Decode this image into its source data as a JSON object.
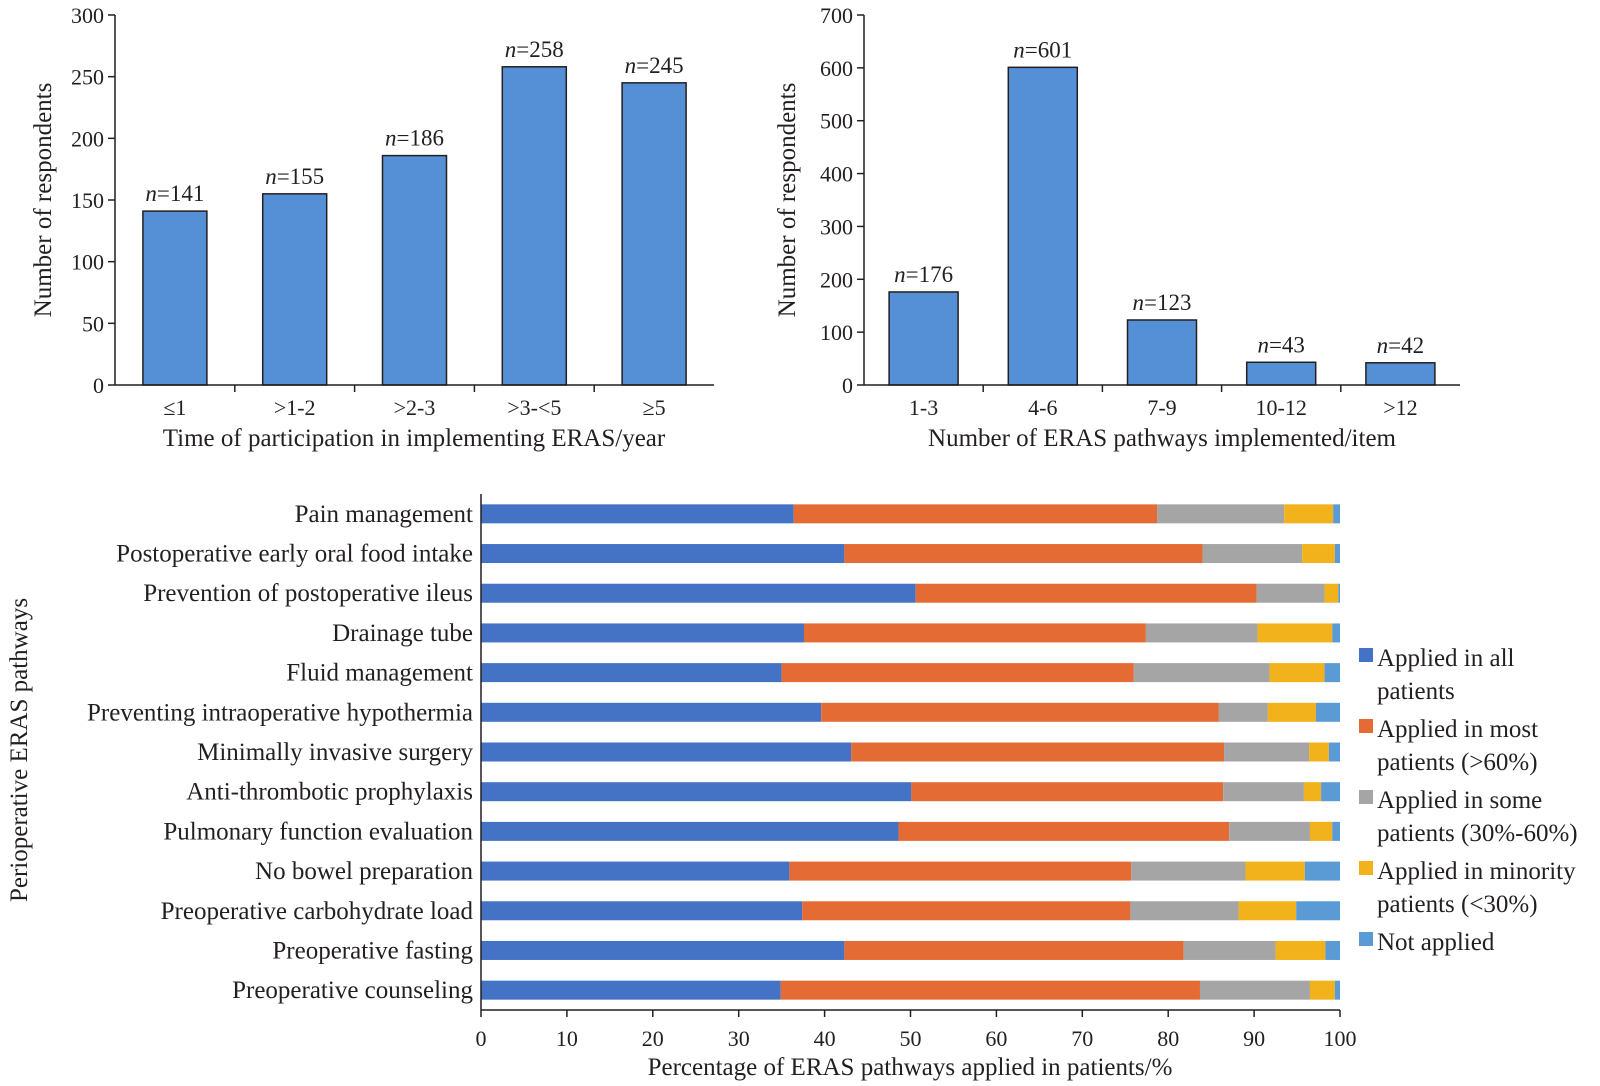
{
  "chart_data": [
    {
      "type": "bar",
      "title": "",
      "categories": [
        "≤1",
        ">1-2",
        ">2-3",
        ">3-<5",
        "≥5"
      ],
      "values": [
        141,
        155,
        186,
        258,
        245
      ],
      "data_labels": [
        "n=141",
        "n=155",
        "n=186",
        "n=258",
        "n=245"
      ],
      "label_prefix": "n",
      "label_values": [
        "=141",
        "=155",
        "=186",
        "=258",
        "=245"
      ],
      "xlabel": "Time of participation in implementing ERAS/year",
      "ylabel": "Number of respondents",
      "ylim": [
        0,
        300
      ],
      "yticks": [
        0,
        50,
        100,
        150,
        200,
        250,
        300
      ],
      "ytick_labels": [
        "0",
        "50",
        "100",
        "150",
        "200",
        "250",
        "300"
      ],
      "color": "#5590d6"
    },
    {
      "type": "bar",
      "title": "",
      "categories": [
        "1-3",
        "4-6",
        "7-9",
        "10-12",
        ">12"
      ],
      "values": [
        176,
        601,
        123,
        43,
        42
      ],
      "data_labels": [
        "n=176",
        "n=601",
        "n=123",
        "n=43",
        "n=42"
      ],
      "label_prefix": "n",
      "label_values": [
        "=176",
        "=601",
        "=123",
        "=43",
        "=42"
      ],
      "xlabel": "Number of ERAS pathways implemented/item",
      "ylabel": "Number of respondents",
      "ylim": [
        0,
        700
      ],
      "yticks": [
        0,
        100,
        200,
        300,
        400,
        500,
        600,
        700
      ],
      "ytick_labels": [
        "0",
        "100",
        "200",
        "300",
        "400",
        "500",
        "600",
        "700"
      ],
      "color": "#5590d6"
    },
    {
      "type": "bar",
      "orientation": "horizontal",
      "stacked": true,
      "title": "",
      "categories": [
        "Pain management",
        "Postoperative early oral food intake",
        "Prevention of postoperative ileus",
        "Drainage tube",
        "Fluid management",
        "Preventing intraoperative hypothermia",
        "Minimally invasive surgery",
        "Anti-thrombotic prophylaxis",
        "Pulmonary function evaluation",
        "No bowel preparation",
        "Preoperative carbohydrate load",
        "Preoperative fasting",
        "Preoperative counseling"
      ],
      "series": [
        {
          "name": "Applied in all patients",
          "legend_lines": [
            "Applied in all",
            "patients"
          ],
          "color": "#4472c4",
          "values": [
            36.4,
            42.3,
            50.6,
            37.6,
            35.0,
            39.6,
            43.1,
            50.1,
            48.6,
            35.9,
            37.4,
            42.3,
            34.9
          ]
        },
        {
          "name": "Applied in most patients (>60%)",
          "legend_lines": [
            "Applied in most",
            "patients (>60%)"
          ],
          "color": "#e46c34",
          "values": [
            42.3,
            41.7,
            39.7,
            39.8,
            41.0,
            46.3,
            43.4,
            36.3,
            38.5,
            39.8,
            38.2,
            39.5,
            48.8
          ]
        },
        {
          "name": "Applied in some patients (30%-60%)",
          "legend_lines": [
            "Applied in some",
            "patients (30%-60%)"
          ],
          "color": "#a5a5a5",
          "values": [
            14.8,
            11.6,
            7.9,
            13.0,
            15.8,
            5.7,
            9.9,
            9.4,
            9.4,
            13.3,
            12.6,
            10.7,
            12.8
          ]
        },
        {
          "name": "Applied in minority patients (<30%)",
          "legend_lines": [
            "Applied in minority",
            "patients (<30%)"
          ],
          "color": "#f2b21c",
          "values": [
            5.7,
            3.8,
            1.6,
            8.7,
            6.4,
            5.6,
            2.3,
            2.0,
            2.6,
            6.9,
            6.7,
            5.8,
            2.9
          ]
        },
        {
          "name": "Not applied",
          "legend_lines": [
            "Not applied"
          ],
          "color": "#5b9bd5",
          "values": [
            0.8,
            0.6,
            0.2,
            0.9,
            1.8,
            2.8,
            1.3,
            2.2,
            0.9,
            4.1,
            5.1,
            1.7,
            0.6
          ]
        }
      ],
      "xlabel": "Percentage of ERAS pathways applied in patients/%",
      "ylabel": "Perioperative ERAS pathways",
      "xlim": [
        0,
        100
      ],
      "xticks": [
        0,
        10,
        20,
        30,
        40,
        50,
        60,
        70,
        80,
        90,
        100
      ],
      "xtick_labels": [
        "0",
        "10",
        "20",
        "30",
        "40",
        "50",
        "60",
        "70",
        "80",
        "90",
        "100"
      ],
      "legend_position": "right"
    }
  ]
}
